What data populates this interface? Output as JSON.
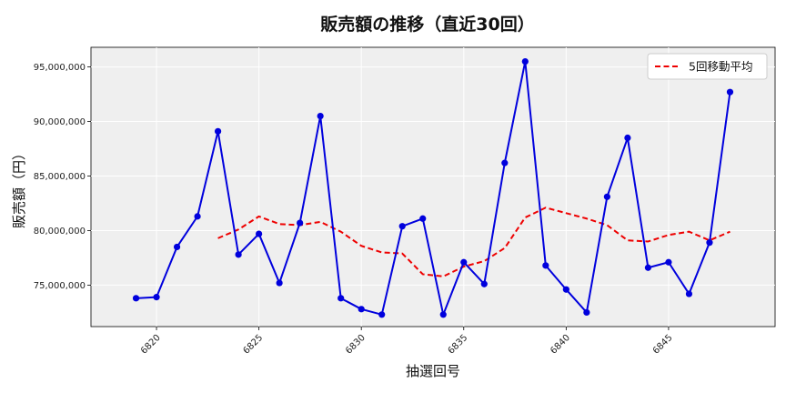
{
  "chart_data": {
    "type": "line",
    "title": "販売額の推移（直近30回）",
    "xlabel": "抽選回号",
    "ylabel": "販売額（円）",
    "x": [
      6819,
      6820,
      6821,
      6822,
      6823,
      6824,
      6825,
      6826,
      6827,
      6828,
      6829,
      6830,
      6831,
      6832,
      6833,
      6834,
      6835,
      6836,
      6837,
      6838,
      6839,
      6840,
      6841,
      6842,
      6843,
      6844,
      6845,
      6846,
      6847,
      6848
    ],
    "x_ticks": [
      "6820",
      "6825",
      "6830",
      "6835",
      "6840",
      "6845"
    ],
    "y_ticks": [
      "75,000,000",
      "80,000,000",
      "85,000,000",
      "90,000,000",
      "95,000,000"
    ],
    "xlim": [
      6816.8,
      6850.2
    ],
    "ylim": [
      71200000,
      96800000
    ],
    "grid": true,
    "legend_position": "top-right",
    "series": [
      {
        "name": "",
        "color": "#0000dd",
        "style": "solid-with-markers",
        "values": [
          73800000,
          73900000,
          78500000,
          81300000,
          89100000,
          77800000,
          79700000,
          75200000,
          80700000,
          90500000,
          73800000,
          72800000,
          72300000,
          80400000,
          81100000,
          72300000,
          77100000,
          75100000,
          86200000,
          95500000,
          76800000,
          74600000,
          72500000,
          83100000,
          88500000,
          76600000,
          77100000,
          74200000,
          78900000,
          92700000
        ]
      },
      {
        "name": "5回移動平均",
        "color": "#ee0000",
        "style": "dashed",
        "values": [
          null,
          null,
          null,
          null,
          79300000,
          80100000,
          81300000,
          80600000,
          80500000,
          80800000,
          79900000,
          78600000,
          78000000,
          77900000,
          76000000,
          75800000,
          76700000,
          77200000,
          78400000,
          81200000,
          82100000,
          81600000,
          81100000,
          80500000,
          79100000,
          79000000,
          79600000,
          79900000,
          79100000,
          79900000
        ]
      }
    ]
  }
}
